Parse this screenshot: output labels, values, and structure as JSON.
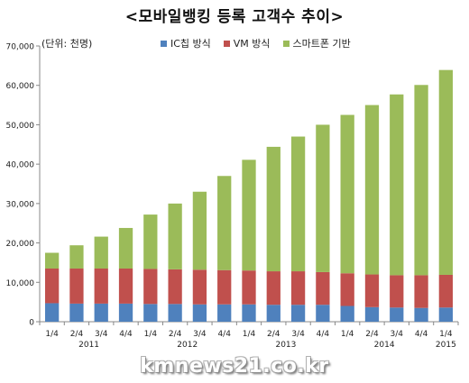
{
  "chart_data": {
    "type": "bar",
    "stacked": true,
    "title": "<모바일뱅킹 등록 고객수 추이>",
    "unit_label": "(단위: 천명)",
    "categories": [
      "1/4",
      "2/4",
      "3/4",
      "4/4",
      "1/4",
      "2/4",
      "3/4",
      "4/4",
      "1/4",
      "2/4",
      "3/4",
      "4/4",
      "1/4",
      "2/4",
      "3/4",
      "4/4",
      "1/4"
    ],
    "year_labels": [
      {
        "label": "2011",
        "start_index": 0,
        "end_index": 3
      },
      {
        "label": "2012",
        "start_index": 4,
        "end_index": 7
      },
      {
        "label": "2013",
        "start_index": 8,
        "end_index": 11
      },
      {
        "label": "2014",
        "start_index": 12,
        "end_index": 15
      },
      {
        "label": "2015",
        "start_index": 16,
        "end_index": 16
      }
    ],
    "series": [
      {
        "name": "IC칩 방식",
        "color": "#4f81bd",
        "values": [
          4700,
          4600,
          4600,
          4600,
          4500,
          4500,
          4400,
          4400,
          4400,
          4300,
          4300,
          4300,
          4000,
          3700,
          3600,
          3500,
          3600
        ]
      },
      {
        "name": "VM 방식",
        "color": "#c0504d",
        "values": [
          8800,
          8900,
          8900,
          8900,
          8900,
          8800,
          8800,
          8700,
          8600,
          8500,
          8500,
          8300,
          8300,
          8300,
          8200,
          8300,
          8300
        ]
      },
      {
        "name": "스마트폰 기반",
        "color": "#9bbb59",
        "values": [
          4000,
          5900,
          8100,
          10300,
          13800,
          16700,
          19800,
          23900,
          28100,
          31600,
          34200,
          37400,
          40200,
          43000,
          45900,
          48300,
          52000
        ]
      }
    ],
    "ylim": [
      0,
      70000
    ],
    "yticks": [
      "0",
      "10,000",
      "20,000",
      "30,000",
      "40,000",
      "50,000",
      "60,000",
      "70,000"
    ],
    "ytick_values": [
      0,
      10000,
      20000,
      30000,
      40000,
      50000,
      60000,
      70000
    ],
    "grid": false,
    "legend_position": "top"
  },
  "watermark": "kmnews21.co.kr"
}
